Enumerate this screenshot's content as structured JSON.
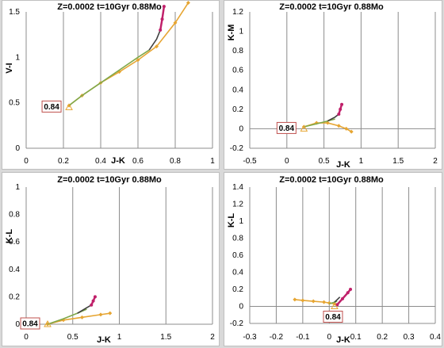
{
  "chart_data": [
    {
      "type": "line",
      "title": "Z=0.0002  t=10Gyr  0.88Mo",
      "xlabel": "J-K",
      "ylabel": "V-I",
      "xlim": [
        0,
        1
      ],
      "ylim": [
        0,
        1.5
      ],
      "xticks": [
        "0",
        "0.2",
        "0.4",
        "0.6",
        "0.8",
        "1"
      ],
      "yticks": [
        "0",
        "0.5",
        "1",
        "1.5"
      ],
      "grid": "x-major",
      "annotation": "0.84",
      "series": [
        {
          "color": "#e6a532",
          "marker": "diamond",
          "x": [
            0.23,
            0.3,
            0.4,
            0.5,
            0.6,
            0.7,
            0.8,
            0.87
          ],
          "y": [
            0.47,
            0.58,
            0.72,
            0.84,
            0.97,
            1.12,
            1.38,
            1.6
          ]
        },
        {
          "color": "#7fa84a",
          "marker": "none",
          "x": [
            0.23,
            0.3,
            0.4,
            0.5,
            0.6,
            0.66
          ],
          "y": [
            0.47,
            0.58,
            0.72,
            0.86,
            1.0,
            1.08
          ]
        },
        {
          "color": "#404040",
          "marker": "none",
          "x": [
            0.66,
            0.7,
            0.72
          ],
          "y": [
            1.08,
            1.2,
            1.3
          ]
        },
        {
          "color": "#c0206a",
          "marker": "dot",
          "x": [
            0.72,
            0.73,
            0.74
          ],
          "y": [
            1.3,
            1.42,
            1.56
          ]
        },
        {
          "color": "#e6a532",
          "marker": "triangle",
          "x": [
            0.23
          ],
          "y": [
            0.45
          ]
        }
      ]
    },
    {
      "type": "line",
      "title": "Z=0.0002  t=10Gyr  0.88Mo",
      "xlabel": "J-K",
      "ylabel": "K-M",
      "xlim": [
        -0.5,
        2
      ],
      "ylim": [
        -0.2,
        1.2
      ],
      "xticks": [
        "-0.5",
        "0",
        "0.5",
        "1",
        "1.5",
        "2"
      ],
      "yticks": [
        "-0.2",
        "0",
        "0.2",
        "0.4",
        "0.6",
        "0.8",
        "1",
        "1.2"
      ],
      "grid": "x-major",
      "annotation": "0.84",
      "series": [
        {
          "color": "#e6a532",
          "marker": "diamond",
          "x": [
            0.23,
            0.4,
            0.55,
            0.7,
            0.8,
            0.87
          ],
          "y": [
            0.02,
            0.06,
            0.06,
            0.03,
            0.0,
            -0.03
          ]
        },
        {
          "color": "#7fa84a",
          "marker": "none",
          "x": [
            0.23,
            0.4,
            0.55,
            0.65
          ],
          "y": [
            0.02,
            0.05,
            0.08,
            0.1
          ]
        },
        {
          "color": "#404040",
          "marker": "none",
          "x": [
            0.55,
            0.65,
            0.7
          ],
          "y": [
            0.08,
            0.12,
            0.15
          ]
        },
        {
          "color": "#c0206a",
          "marker": "dot",
          "x": [
            0.7,
            0.72,
            0.74
          ],
          "y": [
            0.15,
            0.2,
            0.25
          ]
        },
        {
          "color": "#e6a532",
          "marker": "triangle",
          "x": [
            0.23
          ],
          "y": [
            0.0
          ]
        }
      ]
    },
    {
      "type": "line",
      "title": "Z=0.0002  t=10Gyr  0.88Mo",
      "xlabel": "J-K",
      "ylabel": "K-L",
      "xlim": [
        0,
        2
      ],
      "ylim": [
        0,
        1
      ],
      "xticks": [
        "0",
        "0.5",
        "1",
        "1.5",
        "2"
      ],
      "yticks": [
        "0",
        "0.2",
        "0.4",
        "0.6",
        "0.8",
        "1"
      ],
      "grid": "x-major",
      "annotation": "0.84",
      "series": [
        {
          "color": "#e6a532",
          "marker": "diamond",
          "x": [
            0.23,
            0.4,
            0.6,
            0.8,
            0.9
          ],
          "y": [
            0.0,
            0.03,
            0.05,
            0.07,
            0.08
          ]
        },
        {
          "color": "#7fa84a",
          "marker": "none",
          "x": [
            0.23,
            0.4,
            0.55,
            0.65
          ],
          "y": [
            0.0,
            0.04,
            0.08,
            0.11
          ]
        },
        {
          "color": "#404040",
          "marker": "none",
          "x": [
            0.55,
            0.65,
            0.7
          ],
          "y": [
            0.08,
            0.12,
            0.14
          ]
        },
        {
          "color": "#c0206a",
          "marker": "dot",
          "x": [
            0.7,
            0.72,
            0.74
          ],
          "y": [
            0.14,
            0.17,
            0.2
          ]
        },
        {
          "color": "#e6a532",
          "marker": "triangle",
          "x": [
            0.23
          ],
          "y": [
            0.0
          ]
        }
      ]
    },
    {
      "type": "line",
      "title": "Z=0.0002  t=10Gyr  0.88Mo",
      "xlabel": "J-K",
      "ylabel": "K-L",
      "xlim": [
        -0.3,
        0.4
      ],
      "ylim": [
        -0.2,
        1.4
      ],
      "xticks": [
        "-0.3",
        "-0.2",
        "-0.1",
        "0",
        "0.1",
        "0.2",
        "0.3",
        "0.4"
      ],
      "yticks": [
        "-0.2",
        "0",
        "0.2",
        "0.4",
        "0.6",
        "0.8",
        "1",
        "1.2",
        "1.4"
      ],
      "grid": "x-major",
      "annotation": "0.84",
      "series": [
        {
          "color": "#e6a532",
          "marker": "diamond",
          "x": [
            -0.13,
            -0.1,
            -0.06,
            -0.02,
            0.0,
            0.02
          ],
          "y": [
            0.08,
            0.07,
            0.06,
            0.05,
            0.04,
            0.03
          ]
        },
        {
          "color": "#7fa84a",
          "marker": "none",
          "x": [
            0.0,
            0.02,
            0.03
          ],
          "y": [
            0.03,
            0.05,
            0.06
          ]
        },
        {
          "color": "#404040",
          "marker": "none",
          "x": [
            0.02,
            0.03,
            0.04
          ],
          "y": [
            0.05,
            0.08,
            0.11
          ]
        },
        {
          "color": "#c0206a",
          "marker": "dot",
          "x": [
            0.03,
            0.05,
            0.07,
            0.08
          ],
          "y": [
            0.02,
            0.09,
            0.16,
            0.2
          ]
        },
        {
          "color": "#e6a532",
          "marker": "triangle",
          "x": [
            0.02
          ],
          "y": [
            0.0
          ]
        }
      ]
    }
  ]
}
